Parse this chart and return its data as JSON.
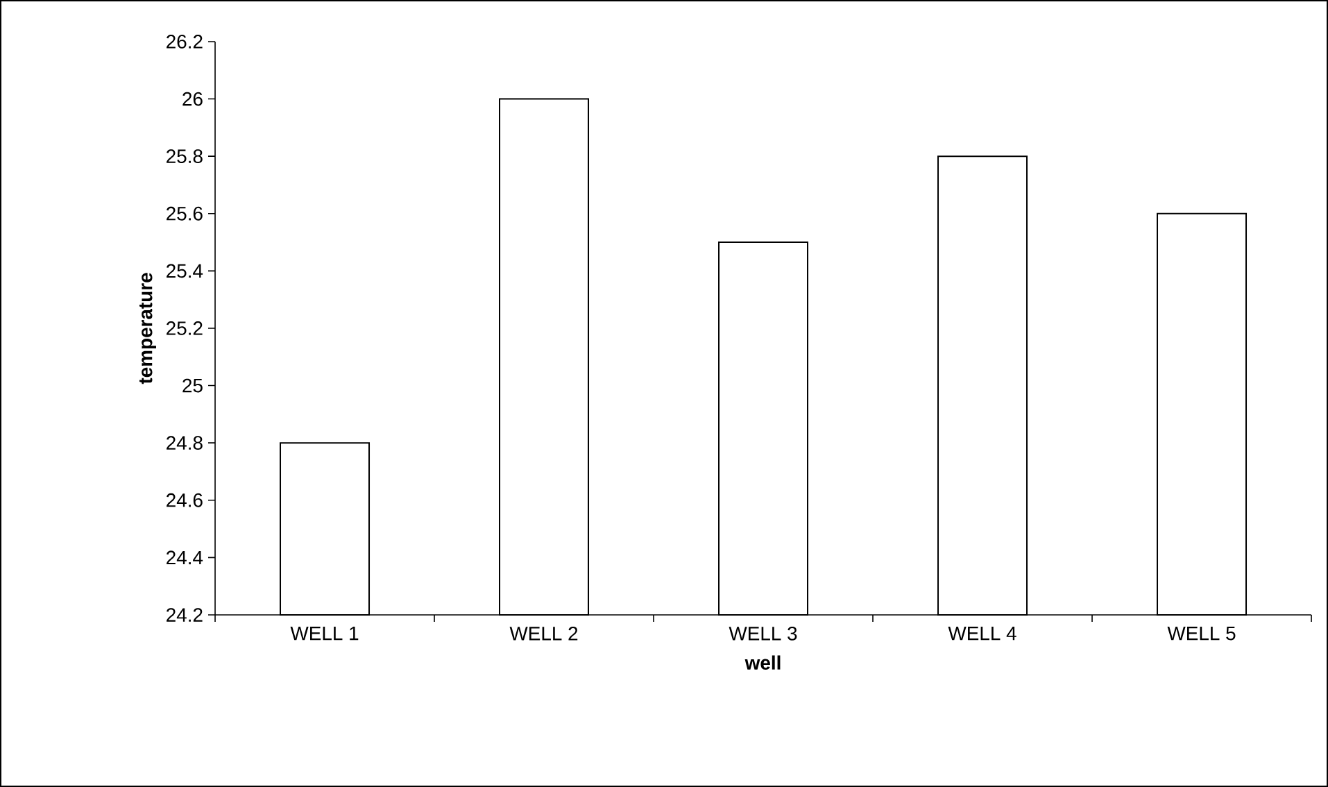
{
  "chart_data": {
    "type": "bar",
    "xlabel": "well",
    "ylabel": "temperature",
    "categories": [
      "WELL 1",
      "WELL 2",
      "WELL 3",
      "WELL 4",
      "WELL 5"
    ],
    "values": [
      24.8,
      26,
      25.5,
      25.8,
      25.6
    ],
    "color": "#ffffff",
    "ylim": [
      24.2,
      26.2
    ],
    "yticks": [
      24.2,
      24.4,
      24.6,
      24.8,
      25,
      25.2,
      25.4,
      25.6,
      25.8,
      26,
      26.2
    ],
    "grid": false
  }
}
